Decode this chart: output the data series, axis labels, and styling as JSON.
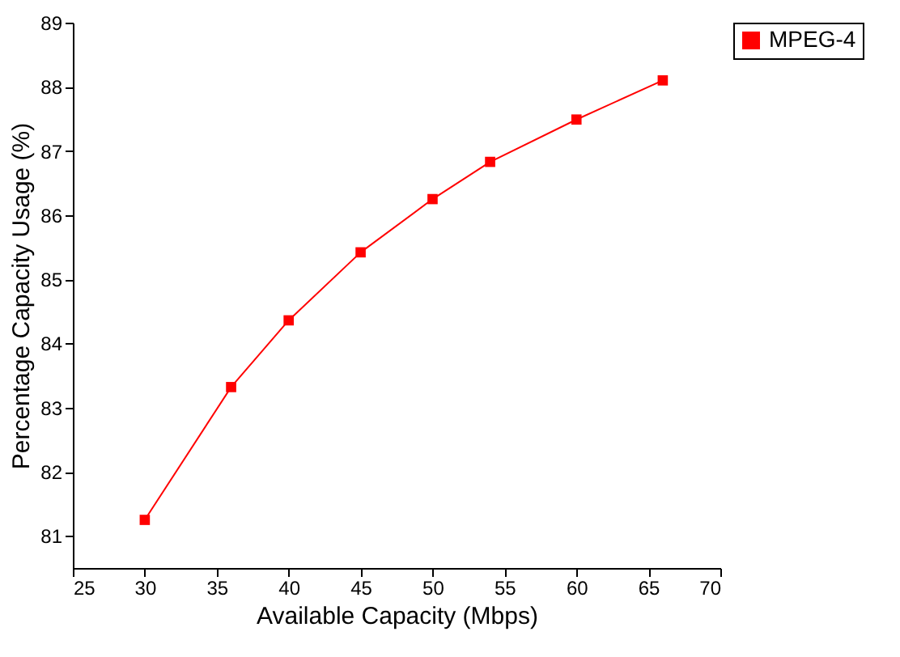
{
  "chart_data": {
    "type": "line",
    "xlabel": "Available Capacity (Mbps)",
    "ylabel": "Percentage Capacity Usage (%)",
    "x": [
      30,
      36,
      40,
      45,
      50,
      54,
      60,
      66
    ],
    "series": [
      {
        "name": "MPEG-4",
        "color": "#ff0000",
        "values": [
          81.25,
          83.32,
          84.36,
          85.42,
          86.25,
          86.83,
          87.49,
          88.1
        ]
      }
    ],
    "xlim": [
      25,
      70
    ],
    "xticks": [
      25,
      30,
      35,
      40,
      45,
      50,
      55,
      60,
      65,
      70
    ],
    "ylim": [
      80.5,
      89
    ],
    "yticks": [
      81,
      82,
      83,
      84,
      85,
      86,
      87,
      88,
      89
    ],
    "grid": false,
    "legend": "top right",
    "marker": "square",
    "line_style": "solid"
  }
}
